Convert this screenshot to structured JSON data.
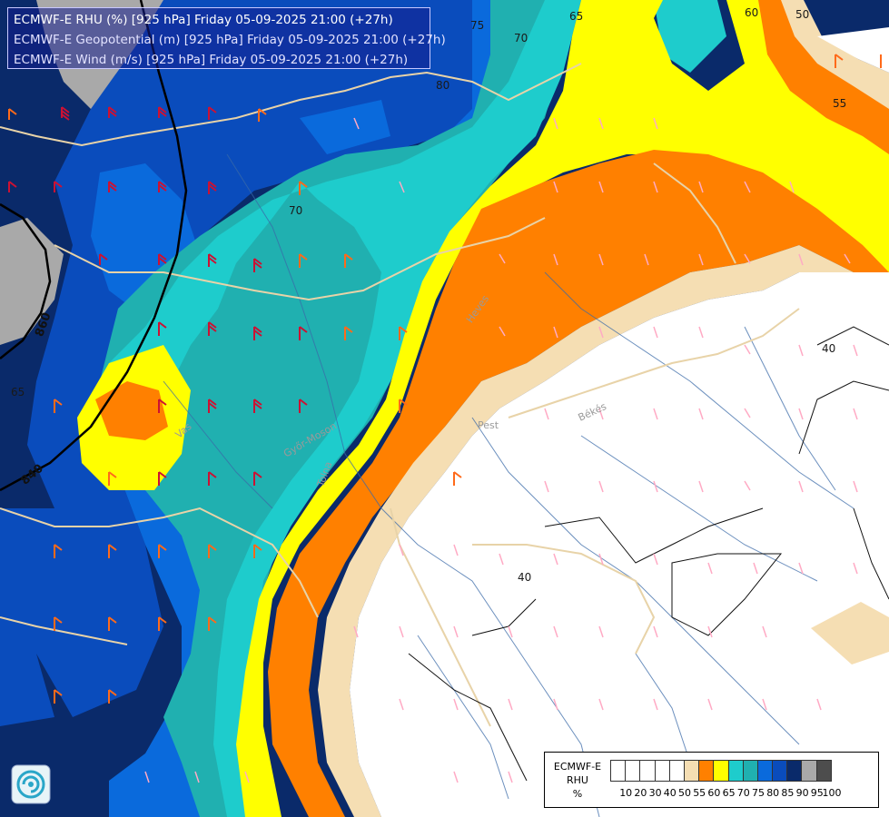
{
  "header": {
    "line1": "ECMWF-E RHU (%) [925 hPa] Friday 05-09-2025 21:00 (+27h)",
    "line2": "ECMWF-E Geopotential (m) [925 hPa] Friday 05-09-2025 21:00 (+27h)",
    "line3": "ECMWF-E Wind (m/s) [925 hPa] Friday 05-09-2025 21:00 (+27h)"
  },
  "legend": {
    "title_line1": "ECMWF-E",
    "title_line2": "RHU",
    "unit": "%",
    "ticks": [
      "10",
      "20",
      "30",
      "40",
      "50",
      "55",
      "60",
      "65",
      "70",
      "75",
      "80",
      "85",
      "90",
      "95",
      "100"
    ],
    "colors": [
      "#ffffff",
      "#ffffff",
      "#ffffff",
      "#ffffff",
      "#ffffff",
      "#f5deb3",
      "#ff8000",
      "#ffff00",
      "#1ecccc",
      "#20b0b0",
      "#0a6adc",
      "#0a4cbc",
      "#0a2a6a",
      "#a9a9a9",
      "#4d4d4d"
    ]
  },
  "contour_labels": {
    "rh": [
      "75",
      "65",
      "60",
      "50",
      "70",
      "80",
      "70",
      "55",
      "40",
      "65",
      "40"
    ],
    "geopotential": [
      "860",
      "840"
    ]
  },
  "places": [
    "Heves",
    "Pest",
    "Békés",
    "Vas",
    "Győr-Moson",
    "Tolna"
  ],
  "colors": {
    "rh_55": "#f5deb3",
    "rh_60": "#ff8000",
    "rh_65": "#ffff00",
    "rh_70": "#1ecccc",
    "rh_75": "#20b0b0",
    "rh_80": "#0a6adc",
    "rh_85": "#0a4cbc",
    "rh_90": "#0a2a6a",
    "rh_95": "#a9a9a9",
    "wind_barb_strong": "#cc1133",
    "wind_barb_medium": "#ff6a1a",
    "wind_barb_light": "#ffaac4",
    "border": "#e8d3a8",
    "river": "#3a6aa8"
  },
  "icons": [
    "ecmwf-logo-icon"
  ]
}
